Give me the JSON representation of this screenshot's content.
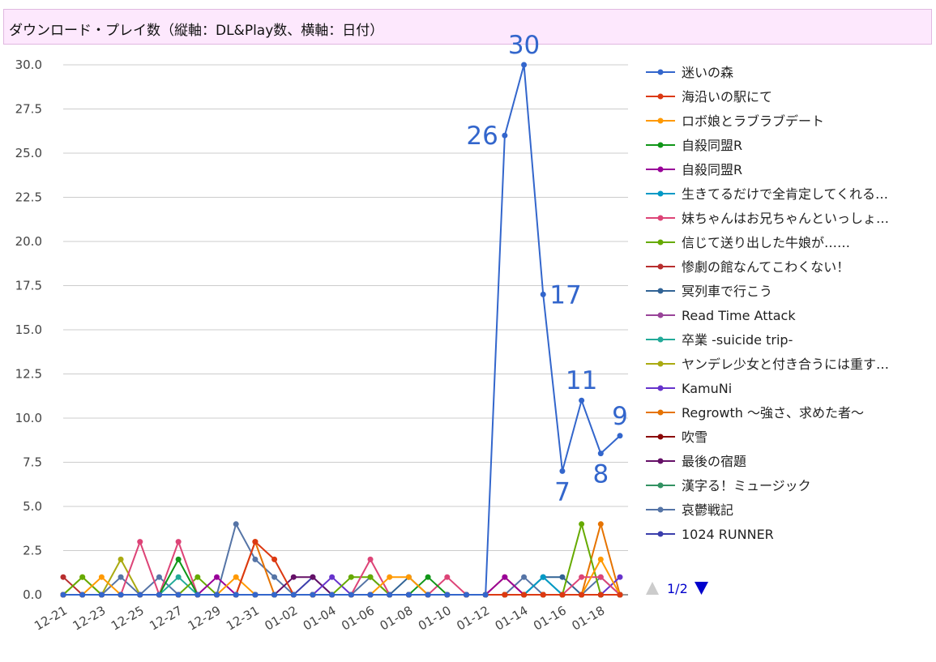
{
  "title": "ダウンロード・プレイ数（縦軸：DL&Play数、横軸：日付）",
  "chart_data": {
    "type": "line",
    "title": "ダウンロード・プレイ数（縦軸：DL&Play数、横軸：日付）",
    "xlabel": "",
    "ylabel": "",
    "ylim": [
      0,
      30
    ],
    "yticks": [
      "0.0",
      "2.5",
      "5.0",
      "7.5",
      "10.0",
      "12.5",
      "15.0",
      "17.5",
      "20.0",
      "22.5",
      "25.0",
      "27.5",
      "30.0"
    ],
    "grid": true,
    "legend_position": "right",
    "x": [
      "12-21",
      "12-22",
      "12-23",
      "12-24",
      "12-25",
      "12-26",
      "12-27",
      "12-28",
      "12-29",
      "12-30",
      "12-31",
      "01-01",
      "01-02",
      "01-03",
      "01-04",
      "01-05",
      "01-06",
      "01-07",
      "01-08",
      "01-09",
      "01-10",
      "01-11",
      "01-12",
      "01-13",
      "01-14",
      "01-15",
      "01-16",
      "01-17",
      "01-18",
      "01-19"
    ],
    "x_tick_labels": [
      "12-21",
      "12-23",
      "12-25",
      "12-27",
      "12-29",
      "12-31",
      "01-02",
      "01-04",
      "01-06",
      "01-08",
      "01-10",
      "01-12",
      "01-14",
      "01-16",
      "01-18"
    ],
    "series": [
      {
        "name": "迷いの森",
        "color": "#3366cc",
        "values": [
          0,
          0,
          0,
          0,
          0,
          0,
          0,
          0,
          0,
          0,
          0,
          0,
          0,
          0,
          0,
          0,
          0,
          0,
          0,
          0,
          0,
          0,
          0,
          26,
          30,
          17,
          7,
          11,
          8,
          9
        ],
        "labels": [
          {
            "i": 23,
            "text": "26",
            "pos": "left"
          },
          {
            "i": 24,
            "text": "30",
            "pos": "top"
          },
          {
            "i": 25,
            "text": "17",
            "pos": "right"
          },
          {
            "i": 26,
            "text": "7",
            "pos": "bottom"
          },
          {
            "i": 27,
            "text": "11",
            "pos": "top"
          },
          {
            "i": 28,
            "text": "8",
            "pos": "bottom"
          },
          {
            "i": 29,
            "text": "9",
            "pos": "top"
          }
        ]
      },
      {
        "name": "海沿いの駅にて",
        "color": "#dc3912",
        "values": [
          0,
          0,
          0,
          0,
          0,
          0,
          0,
          0,
          0,
          0,
          3,
          2,
          0,
          0,
          0,
          0,
          0,
          0,
          0,
          0,
          0,
          0,
          0,
          0,
          0,
          0,
          0,
          0,
          0,
          0
        ]
      },
      {
        "name": "ロボ娘とラブラブデート",
        "color": "#ff9900",
        "values": [
          0,
          0,
          1,
          0,
          0,
          0,
          0,
          0,
          0,
          1,
          0,
          0,
          0,
          0,
          0,
          0,
          0,
          1,
          1,
          0,
          0,
          0,
          0,
          0,
          0,
          0,
          0,
          0,
          2,
          0
        ]
      },
      {
        "name": "自殺同盟R",
        "color": "#109618",
        "values": [
          0,
          0,
          0,
          0,
          0,
          0,
          2,
          0,
          0,
          0,
          0,
          0,
          0,
          0,
          0,
          0,
          0,
          0,
          0,
          1,
          0,
          0,
          0,
          0,
          0,
          0,
          0,
          0,
          0,
          0
        ]
      },
      {
        "name": "自殺同盟R",
        "color": "#990099",
        "values": [
          0,
          0,
          0,
          0,
          0,
          0,
          0,
          0,
          1,
          0,
          0,
          0,
          0,
          0,
          0,
          0,
          0,
          0,
          0,
          0,
          0,
          0,
          0,
          1,
          0,
          0,
          0,
          0,
          0,
          0
        ]
      },
      {
        "name": "生きてるだけで全肯定してくれる…",
        "color": "#0099c6",
        "values": [
          0,
          0,
          0,
          0,
          0,
          0,
          0,
          0,
          0,
          0,
          0,
          0,
          0,
          0,
          0,
          0,
          0,
          0,
          0,
          0,
          0,
          0,
          0,
          0,
          0,
          1,
          0,
          0,
          0,
          0
        ]
      },
      {
        "name": "妹ちゃんはお兄ちゃんといっしょ…",
        "color": "#dd4477",
        "values": [
          0,
          0,
          0,
          0,
          3,
          0,
          3,
          0,
          0,
          0,
          0,
          0,
          0,
          0,
          0,
          0,
          2,
          0,
          0,
          0,
          1,
          0,
          0,
          0,
          0,
          0,
          0,
          1,
          1,
          0
        ]
      },
      {
        "name": "信じて送り出した牛娘が……",
        "color": "#66aa00",
        "values": [
          0,
          1,
          0,
          0,
          0,
          0,
          0,
          1,
          0,
          0,
          0,
          0,
          0,
          0,
          0,
          1,
          1,
          0,
          0,
          0,
          0,
          0,
          0,
          0,
          0,
          0,
          0,
          4,
          0,
          0
        ]
      },
      {
        "name": "惨劇の館なんてこわくない！",
        "color": "#b82e2e",
        "values": [
          1,
          0,
          0,
          0,
          0,
          0,
          0,
          0,
          0,
          0,
          0,
          0,
          0,
          0,
          0,
          0,
          0,
          0,
          0,
          0,
          0,
          0,
          0,
          0,
          0,
          0,
          0,
          0,
          0,
          0
        ]
      },
      {
        "name": "冥列車で行こう",
        "color": "#316395",
        "values": [
          0,
          0,
          0,
          0,
          0,
          0,
          0,
          0,
          0,
          0,
          0,
          0,
          0,
          0,
          0,
          0,
          0,
          0,
          1,
          0,
          0,
          0,
          0,
          0,
          0,
          1,
          1,
          0,
          0,
          0
        ]
      },
      {
        "name": "Read Time Attack",
        "color": "#994499",
        "values": [
          0,
          0,
          0,
          0,
          0,
          0,
          0,
          0,
          0,
          0,
          0,
          0,
          0,
          0,
          0,
          0,
          0,
          0,
          0,
          0,
          0,
          0,
          0,
          0,
          0,
          0,
          0,
          0,
          0,
          0
        ]
      },
      {
        "name": "卒業 -suicide trip-",
        "color": "#22aa99",
        "values": [
          0,
          0,
          0,
          0,
          0,
          0,
          1,
          0,
          0,
          0,
          0,
          0,
          0,
          0,
          0,
          0,
          0,
          0,
          0,
          0,
          0,
          0,
          0,
          0,
          0,
          1,
          0,
          0,
          0,
          0
        ]
      },
      {
        "name": "ヤンデレ少女と付き合うには重す…",
        "color": "#aaaa11",
        "values": [
          0,
          1,
          0,
          2,
          0,
          0,
          0,
          0,
          0,
          0,
          0,
          0,
          0,
          0,
          0,
          0,
          0,
          0,
          0,
          0,
          0,
          0,
          0,
          0,
          0,
          0,
          0,
          0,
          0,
          0
        ]
      },
      {
        "name": "KamuNi",
        "color": "#6633cc",
        "values": [
          0,
          0,
          0,
          0,
          0,
          0,
          0,
          0,
          0,
          0,
          0,
          0,
          0,
          0,
          1,
          0,
          0,
          0,
          0,
          0,
          0,
          0,
          0,
          0,
          0,
          0,
          0,
          0,
          0,
          1
        ]
      },
      {
        "name": "Regrowth ～強さ、求めた者～",
        "color": "#e67300",
        "values": [
          0,
          0,
          0,
          0,
          0,
          0,
          0,
          0,
          0,
          0,
          3,
          0,
          0,
          0,
          0,
          0,
          0,
          0,
          0,
          0,
          0,
          0,
          0,
          1,
          0,
          0,
          0,
          0,
          4,
          0
        ]
      },
      {
        "name": "吹雪",
        "color": "#8b0707",
        "values": [
          0,
          0,
          0,
          0,
          0,
          0,
          0,
          0,
          0,
          0,
          0,
          0,
          0,
          0,
          0,
          0,
          0,
          0,
          0,
          0,
          0,
          0,
          0,
          0,
          0,
          0,
          0,
          0,
          0,
          0
        ]
      },
      {
        "name": "最後の宿題",
        "color": "#651067",
        "values": [
          0,
          0,
          0,
          0,
          0,
          0,
          0,
          0,
          0,
          0,
          0,
          0,
          1,
          1,
          0,
          0,
          0,
          0,
          0,
          0,
          0,
          0,
          0,
          0,
          0,
          0,
          0,
          0,
          0,
          0
        ]
      },
      {
        "name": "漢字る！ミュージック",
        "color": "#329262",
        "values": [
          0,
          0,
          0,
          0,
          0,
          0,
          0,
          0,
          0,
          0,
          0,
          0,
          0,
          0,
          0,
          0,
          0,
          0,
          0,
          0,
          0,
          0,
          0,
          0,
          0,
          0,
          0,
          0,
          0,
          0
        ]
      },
      {
        "name": "哀鬱戦記",
        "color": "#5574a6",
        "values": [
          0,
          0,
          0,
          1,
          0,
          1,
          0,
          0,
          0,
          4,
          2,
          1,
          0,
          0,
          0,
          0,
          1,
          0,
          0,
          0,
          0,
          0,
          0,
          0,
          1,
          0,
          0,
          0,
          1,
          0
        ]
      },
      {
        "name": "1024 RUNNER",
        "color": "#3b3eac",
        "values": [
          0,
          0,
          0,
          0,
          0,
          0,
          0,
          0,
          0,
          0,
          0,
          0,
          0,
          1,
          0,
          0,
          0,
          0,
          0,
          0,
          0,
          0,
          0,
          0,
          0,
          0,
          0,
          0,
          0,
          0
        ]
      }
    ]
  },
  "legend_pager": {
    "text": "1/2",
    "prev_color": "#cccccc",
    "next_color": "#0000cc"
  }
}
